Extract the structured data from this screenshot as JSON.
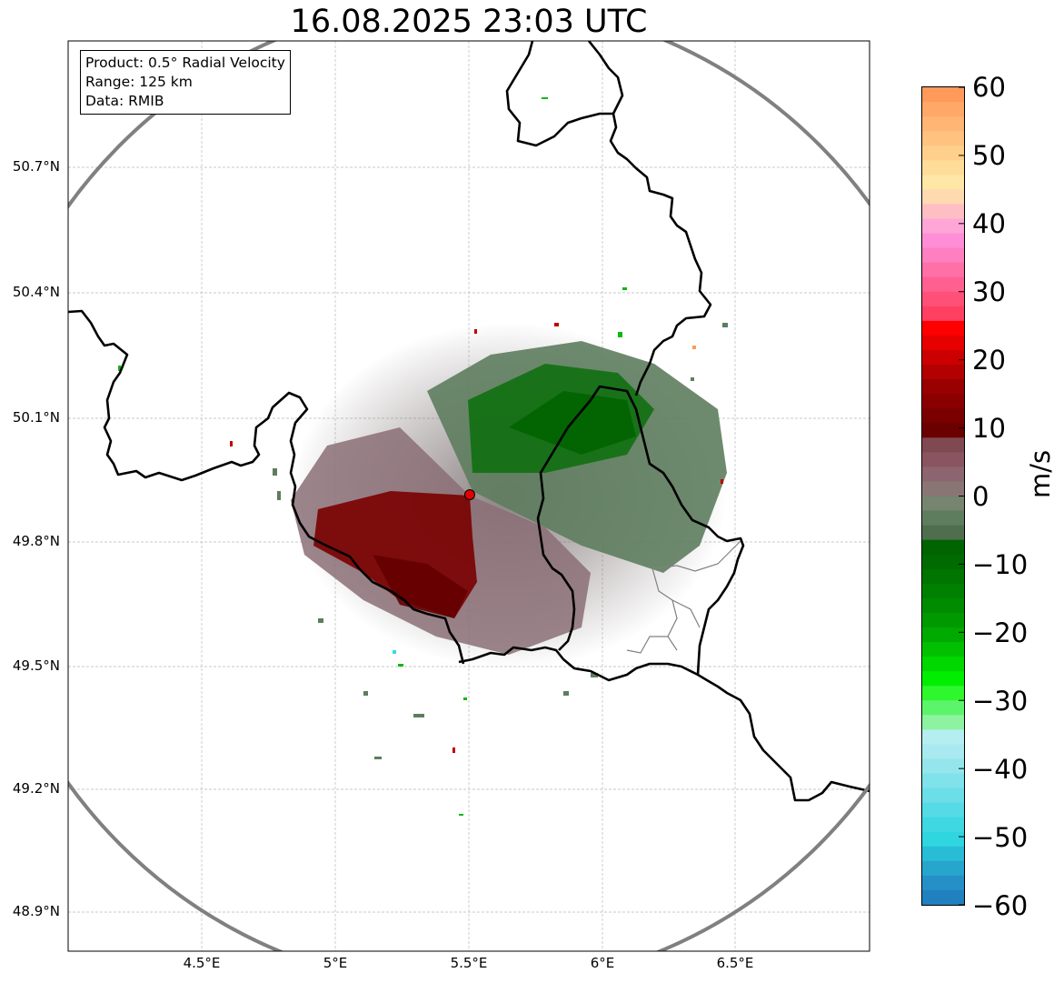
{
  "title": "16.08.2025 23:03 UTC",
  "info": {
    "product": "Product: 0.5° Radial Velocity",
    "range": "Range: 125 km",
    "data": "Data: RMIB"
  },
  "axes": {
    "lat_labels": [
      "50.7°N",
      "50.4°N",
      "50.1°N",
      "49.8°N",
      "49.5°N",
      "49.2°N",
      "48.9°N"
    ],
    "lon_labels": [
      "4.5°E",
      "5°E",
      "5.5°E",
      "6°E",
      "6.5°E"
    ]
  },
  "colorbar": {
    "unit": "m/s",
    "ticks": [
      "60",
      "50",
      "40",
      "30",
      "20",
      "10",
      "0",
      "−10",
      "−20",
      "−30",
      "−40",
      "−50",
      "−60"
    ]
  },
  "chart_data": {
    "type": "heatmap",
    "variable": "radial velocity",
    "unit": "m/s",
    "value_range": [
      -60,
      60
    ],
    "extent_lon": [
      4.0,
      7.0
    ],
    "extent_lat": [
      48.8,
      51.0
    ],
    "radar_site": {
      "lon": 5.505,
      "lat": 49.915
    },
    "range_km": 125,
    "grid": true
  }
}
